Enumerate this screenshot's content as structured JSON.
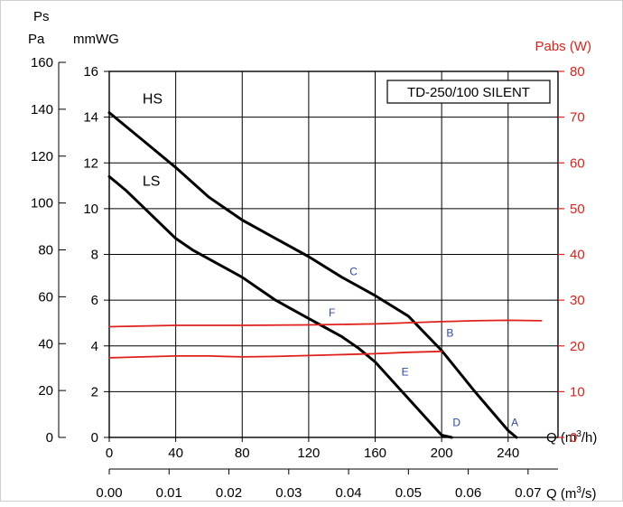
{
  "chart_data": {
    "type": "line",
    "title": "TD-250/100 SILENT",
    "left_axis": {
      "header": "Ps",
      "pa_unit": "Pa",
      "mmwg_unit": "mmWG",
      "pa_ticks": [
        "0",
        "20",
        "40",
        "60",
        "80",
        "100",
        "120",
        "140",
        "160"
      ],
      "mmwg_ticks": [
        "0",
        "2",
        "4",
        "6",
        "8",
        "10",
        "12",
        "14",
        "16"
      ],
      "range_mmwg": [
        0,
        16
      ]
    },
    "right_axis": {
      "label": "Pabs (W)",
      "ticks": [
        "0",
        "10",
        "20",
        "30",
        "40",
        "50",
        "60",
        "70",
        "80"
      ],
      "range": [
        0,
        80
      ]
    },
    "x_axis": {
      "label_prefix": "Q (m",
      "label_h_suffix": "/h)",
      "label_s_suffix": "/s)",
      "superscript": "3",
      "m3h_ticks": [
        "0",
        "40",
        "80",
        "120",
        "160",
        "200",
        "240"
      ],
      "m3s_ticks": [
        "0.00",
        "0.01",
        "0.02",
        "0.03",
        "0.04",
        "0.05",
        "0.06",
        "0.07"
      ],
      "range_m3h": [
        0,
        270
      ]
    },
    "grid": true,
    "series": [
      {
        "name": "HS",
        "axis": "left",
        "color": "#000000",
        "x": [
          0,
          20,
          40,
          60,
          80,
          100,
          120,
          140,
          160,
          180,
          200,
          220,
          240,
          245
        ],
        "y": [
          14.2,
          13.0,
          11.8,
          10.5,
          9.5,
          8.7,
          7.9,
          7.0,
          6.2,
          5.3,
          3.8,
          2.0,
          0.3,
          0
        ]
      },
      {
        "name": "LS",
        "axis": "left",
        "color": "#000000",
        "x": [
          0,
          10,
          20,
          30,
          40,
          50,
          60,
          70,
          80,
          90,
          100,
          110,
          120,
          130,
          140,
          150,
          160,
          170,
          180,
          190,
          200,
          206
        ],
        "y": [
          11.4,
          10.8,
          10.1,
          9.4,
          8.7,
          8.2,
          7.8,
          7.4,
          7.0,
          6.5,
          6.0,
          5.6,
          5.2,
          4.8,
          4.4,
          3.9,
          3.3,
          2.5,
          1.7,
          0.9,
          0.1,
          0
        ]
      },
      {
        "name": "",
        "axis": "right",
        "color": "#e0201b",
        "x": [
          0,
          40,
          80,
          120,
          160,
          200,
          220,
          240,
          260
        ],
        "y": [
          24.2,
          24.5,
          24.5,
          24.6,
          24.8,
          25.3,
          25.5,
          25.6,
          25.5
        ]
      },
      {
        "name": "",
        "axis": "right",
        "color": "#e0201b",
        "x": [
          0,
          20,
          40,
          60,
          80,
          100,
          120,
          140,
          160,
          180,
          200
        ],
        "y": [
          17.4,
          17.6,
          17.8,
          17.8,
          17.6,
          17.7,
          17.9,
          18.1,
          18.3,
          18.6,
          18.8
        ]
      }
    ],
    "curve_labels": [
      {
        "text": "HS",
        "x": 20,
        "y": 14.6
      },
      {
        "text": "LS",
        "x": 20,
        "y": 11.0
      }
    ],
    "point_labels": [
      {
        "text": "A",
        "x": 244,
        "y": 0.5
      },
      {
        "text": "B",
        "x": 205,
        "y": 4.4
      },
      {
        "text": "C",
        "x": 147,
        "y": 7.1
      },
      {
        "text": "D",
        "x": 209,
        "y": 0.5
      },
      {
        "text": "E",
        "x": 178,
        "y": 2.7
      },
      {
        "text": "F",
        "x": 134,
        "y": 5.3
      }
    ]
  }
}
